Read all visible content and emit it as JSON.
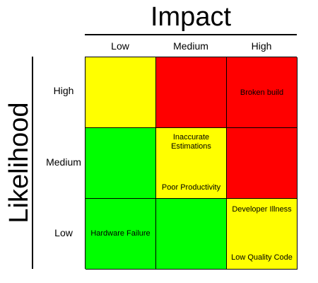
{
  "axes": {
    "impact_title": "Impact",
    "likelihood_title": "Likelihood",
    "impact_levels": [
      "Low",
      "Medium",
      "High"
    ],
    "likelihood_levels": [
      "High",
      "Medium",
      "Low"
    ]
  },
  "colors": {
    "green": "#00ff00",
    "yellow": "#ffff00",
    "red": "#ff0000"
  },
  "matrix": {
    "rows": [
      {
        "likelihood": "High",
        "cells": [
          {
            "impact": "Low",
            "color": "#ffff00",
            "risks": []
          },
          {
            "impact": "Medium",
            "color": "#ff0000",
            "risks": []
          },
          {
            "impact": "High",
            "color": "#ff0000",
            "risks": [
              "Broken build"
            ]
          }
        ]
      },
      {
        "likelihood": "Medium",
        "cells": [
          {
            "impact": "Low",
            "color": "#00ff00",
            "risks": []
          },
          {
            "impact": "Medium",
            "color": "#ffff00",
            "risks": [
              "Inaccurate Estimations",
              "Poor Productivity"
            ]
          },
          {
            "impact": "High",
            "color": "#ff0000",
            "risks": []
          }
        ]
      },
      {
        "likelihood": "Low",
        "cells": [
          {
            "impact": "Low",
            "color": "#00ff00",
            "risks": [
              "Hardware Failure"
            ]
          },
          {
            "impact": "Medium",
            "color": "#00ff00",
            "risks": []
          },
          {
            "impact": "High",
            "color": "#ffff00",
            "risks": [
              "Developer Illness",
              "Low Quality Code"
            ]
          }
        ]
      }
    ]
  }
}
